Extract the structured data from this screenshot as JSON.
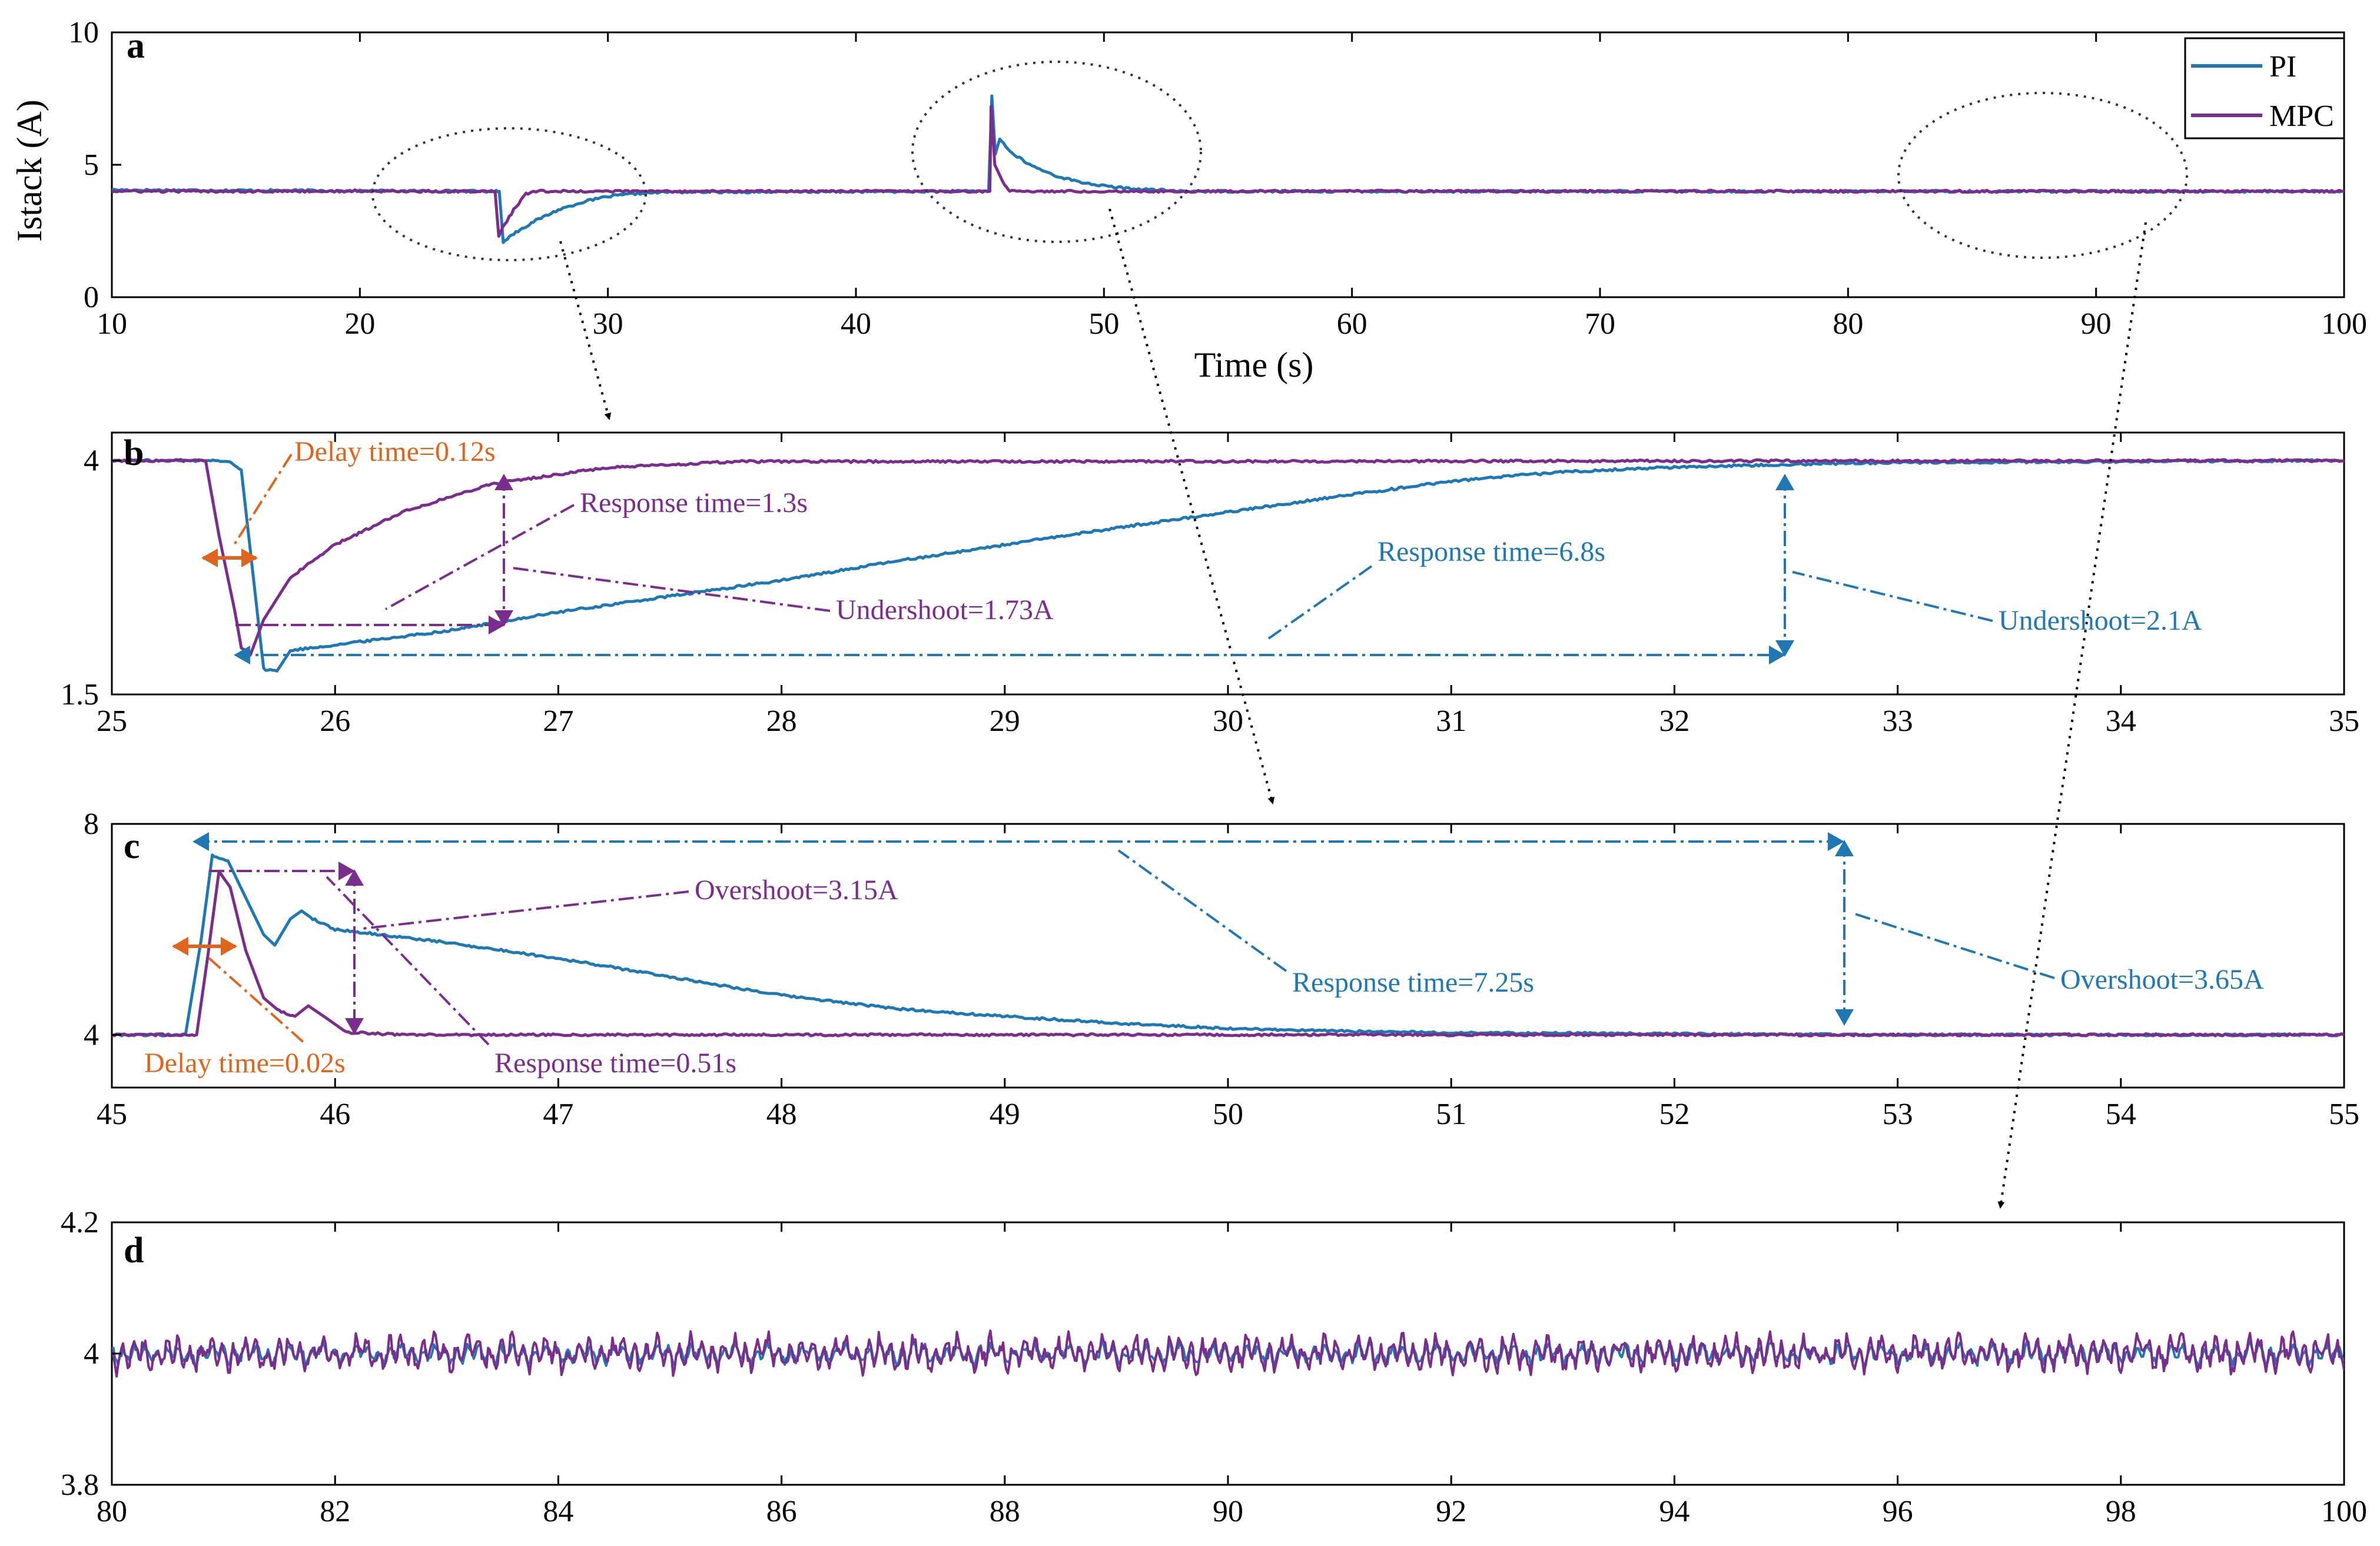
{
  "colors": {
    "pi": "#1f77b4",
    "mpc": "#7b2d8e",
    "delay": "#e0641c",
    "axis": "#000000",
    "arrow": "#000000"
  },
  "chart_data": [
    {
      "id": "a",
      "type": "line",
      "panel_label": "a",
      "xlabel": "Time (s)",
      "ylabel": "Istack (A)",
      "xlim": [
        10,
        100
      ],
      "ylim": [
        0,
        10
      ],
      "xticks": [
        "10",
        "20",
        "30",
        "40",
        "50",
        "60",
        "70",
        "80",
        "90",
        "100"
      ],
      "yticks": [
        "0",
        "5",
        "10"
      ],
      "legend": {
        "position": "top-right",
        "entries": [
          "PI",
          "MPC"
        ]
      },
      "series": [
        {
          "name": "PI",
          "points": [
            [
              10,
              4.05
            ],
            [
              25.5,
              4.0
            ],
            [
              25.62,
              4.0
            ],
            [
              25.78,
              2.1
            ],
            [
              26.2,
              2.4
            ],
            [
              27,
              2.85
            ],
            [
              28,
              3.3
            ],
            [
              29,
              3.6
            ],
            [
              30,
              3.8
            ],
            [
              31,
              3.9
            ],
            [
              32.3,
              3.97
            ],
            [
              45.35,
              4.0
            ],
            [
              45.48,
              7.6
            ],
            [
              45.62,
              5.4
            ],
            [
              45.8,
              6.0
            ],
            [
              46.2,
              5.5
            ],
            [
              47,
              5.0
            ],
            [
              48,
              4.6
            ],
            [
              49,
              4.35
            ],
            [
              50,
              4.2
            ],
            [
              51,
              4.1
            ],
            [
              52.5,
              4.03
            ],
            [
              53,
              4.0
            ],
            [
              100,
              4.0
            ]
          ]
        },
        {
          "name": "MPC",
          "points": [
            [
              10,
              4.0
            ],
            [
              25.45,
              4.0
            ],
            [
              25.6,
              2.3
            ],
            [
              25.75,
              2.6
            ],
            [
              26.2,
              3.3
            ],
            [
              26.7,
              3.9
            ],
            [
              27,
              4.0
            ],
            [
              45.4,
              4.0
            ],
            [
              45.45,
              7.2
            ],
            [
              45.6,
              5.0
            ],
            [
              46,
              4.2
            ],
            [
              46.2,
              4.0
            ],
            [
              100,
              4.0
            ]
          ]
        }
      ],
      "annotations": []
    },
    {
      "id": "b",
      "type": "line",
      "panel_label": "b",
      "xlim": [
        25,
        35
      ],
      "ylim": [
        1.5,
        4.3
      ],
      "xticks": [
        "25",
        "26",
        "27",
        "28",
        "29",
        "30",
        "31",
        "32",
        "33",
        "34",
        "35"
      ],
      "yticks": [
        "1.5",
        "4"
      ],
      "series": [
        {
          "name": "PI",
          "points": [
            [
              25,
              4.0
            ],
            [
              25.52,
              4.0
            ],
            [
              25.58,
              3.9
            ],
            [
              25.68,
              1.77
            ],
            [
              25.74,
              1.75
            ],
            [
              25.8,
              1.97
            ],
            [
              26,
              2.03
            ],
            [
              26.5,
              2.18
            ],
            [
              27,
              2.38
            ],
            [
              27.5,
              2.55
            ],
            [
              28,
              2.72
            ],
            [
              28.5,
              2.92
            ],
            [
              29,
              3.1
            ],
            [
              29.5,
              3.28
            ],
            [
              30,
              3.45
            ],
            [
              30.5,
              3.62
            ],
            [
              31,
              3.78
            ],
            [
              31.5,
              3.88
            ],
            [
              32,
              3.93
            ],
            [
              32.5,
              3.96
            ],
            [
              33,
              3.98
            ],
            [
              35,
              4.0
            ]
          ]
        },
        {
          "name": "MPC",
          "points": [
            [
              25,
              4.0
            ],
            [
              25.42,
              4.0
            ],
            [
              25.48,
              3.2
            ],
            [
              25.55,
              2.4
            ],
            [
              25.58,
              2.0
            ],
            [
              25.62,
              1.92
            ],
            [
              25.68,
              2.3
            ],
            [
              25.8,
              2.75
            ],
            [
              26,
              3.1
            ],
            [
              26.3,
              3.45
            ],
            [
              26.7,
              3.75
            ],
            [
              27.2,
              3.92
            ],
            [
              27.8,
              3.99
            ],
            [
              35,
              4.0
            ]
          ]
        }
      ],
      "annotations": [
        {
          "text": "Delay time=0.12s",
          "color": "delay"
        },
        {
          "text": "Response time=1.3s",
          "color": "mpc"
        },
        {
          "text": "Undershoot=1.73A",
          "color": "mpc"
        },
        {
          "text": "Response time=6.8s",
          "color": "pi"
        },
        {
          "text": "Undershoot=2.1A",
          "color": "pi"
        }
      ]
    },
    {
      "id": "c",
      "type": "line",
      "panel_label": "c",
      "xlim": [
        45,
        55
      ],
      "ylim": [
        3.0,
        8.0
      ],
      "xticks": [
        "45",
        "46",
        "47",
        "48",
        "49",
        "50",
        "51",
        "52",
        "53",
        "54",
        "55"
      ],
      "yticks": [
        "4",
        "8"
      ],
      "series": [
        {
          "name": "PI",
          "points": [
            [
              45,
              4.0
            ],
            [
              45.33,
              4.0
            ],
            [
              45.4,
              5.8
            ],
            [
              45.45,
              7.4
            ],
            [
              45.52,
              7.3
            ],
            [
              45.6,
              6.6
            ],
            [
              45.68,
              5.9
            ],
            [
              45.73,
              5.7
            ],
            [
              45.8,
              6.2
            ],
            [
              45.85,
              6.35
            ],
            [
              45.9,
              6.2
            ],
            [
              46,
              6.0
            ],
            [
              46.5,
              5.75
            ],
            [
              47,
              5.45
            ],
            [
              47.5,
              5.1
            ],
            [
              48,
              4.75
            ],
            [
              48.5,
              4.5
            ],
            [
              49,
              4.35
            ],
            [
              49.5,
              4.22
            ],
            [
              50,
              4.12
            ],
            [
              50.5,
              4.07
            ],
            [
              51,
              4.04
            ],
            [
              52,
              4.02
            ],
            [
              53,
              4.0
            ],
            [
              55,
              4.0
            ]
          ]
        },
        {
          "name": "MPC",
          "points": [
            [
              45,
              4.0
            ],
            [
              45.38,
              4.0
            ],
            [
              45.43,
              5.5
            ],
            [
              45.48,
              7.1
            ],
            [
              45.53,
              6.8
            ],
            [
              45.6,
              5.6
            ],
            [
              45.68,
              4.7
            ],
            [
              45.75,
              4.45
            ],
            [
              45.82,
              4.35
            ],
            [
              45.88,
              4.55
            ],
            [
              45.95,
              4.35
            ],
            [
              46.05,
              4.05
            ],
            [
              46.3,
              4.0
            ],
            [
              55,
              4.0
            ]
          ]
        }
      ],
      "annotations": [
        {
          "text": "Delay time=0.02s",
          "color": "delay"
        },
        {
          "text": "Overshoot=3.15A",
          "color": "mpc"
        },
        {
          "text": "Response time=0.51s",
          "color": "mpc"
        },
        {
          "text": "Response time=7.25s",
          "color": "pi"
        },
        {
          "text": "Overshoot=3.65A",
          "color": "pi"
        }
      ]
    },
    {
      "id": "d",
      "type": "line",
      "panel_label": "d",
      "xlim": [
        80,
        100
      ],
      "ylim": [
        3.8,
        4.2
      ],
      "xticks": [
        "80",
        "82",
        "84",
        "86",
        "88",
        "90",
        "92",
        "94",
        "96",
        "98",
        "100"
      ],
      "yticks": [
        "3.8",
        "4",
        "4.2"
      ],
      "series": [
        {
          "name": "PI",
          "mean": 4.0,
          "noise": 0.016
        },
        {
          "name": "MPC",
          "mean": 4.0,
          "noise": 0.028
        }
      ],
      "annotations": []
    }
  ]
}
